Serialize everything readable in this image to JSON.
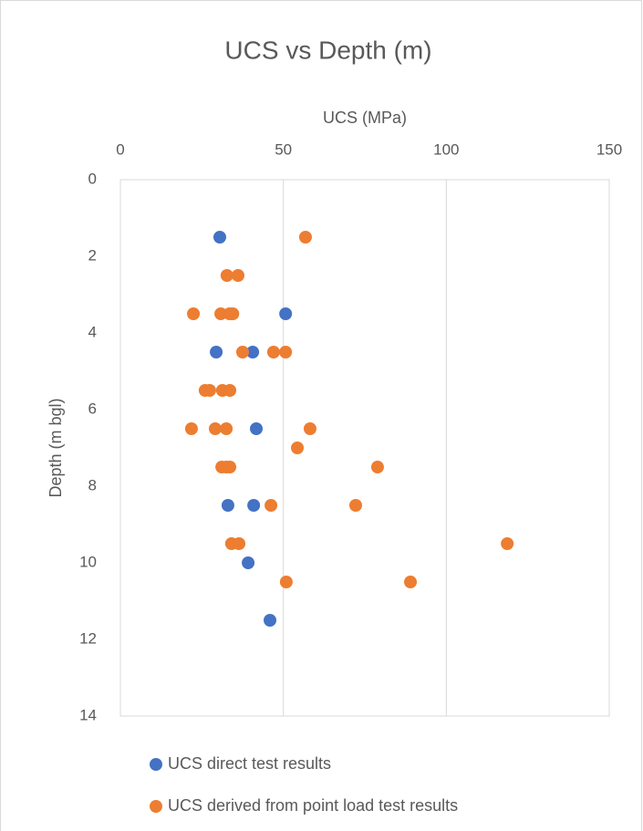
{
  "chart_data": {
    "type": "scatter",
    "title": "UCS vs Depth (m)",
    "x_label": "UCS (MPa)",
    "y_label": "Depth (m bgl)",
    "xlim": [
      0,
      150
    ],
    "xticks": [
      0,
      50,
      100,
      150
    ],
    "ylim": [
      0,
      14
    ],
    "yticks": [
      0,
      2,
      4,
      6,
      8,
      10,
      12,
      14
    ],
    "y_inverted": true,
    "x_axis_position": "top",
    "grid": "x",
    "legend": "bottom",
    "series": [
      {
        "name": "UCS direct test results",
        "color": "#4472c4",
        "x": [
          30.5,
          50.7,
          29.4,
          40.6,
          41.7,
          33.0,
          40.9,
          39.2,
          45.9
        ],
        "values": [
          1.5,
          3.5,
          4.5,
          4.5,
          6.5,
          8.5,
          8.5,
          10.0,
          11.5
        ]
      },
      {
        "name": "UCS derived from point load test results",
        "color": "#ed7d31",
        "x": [
          56.8,
          32.7,
          36.1,
          22.4,
          30.8,
          33.5,
          34.5,
          37.5,
          47.0,
          50.7,
          26.0,
          27.4,
          31.3,
          33.6,
          21.8,
          29.1,
          32.5,
          58.2,
          54.3,
          31.1,
          32.5,
          33.6,
          78.9,
          46.2,
          72.2,
          34.1,
          36.4,
          118.7,
          50.9,
          89.0
        ],
        "values": [
          1.5,
          2.5,
          2.5,
          3.5,
          3.5,
          3.5,
          3.5,
          4.5,
          4.5,
          4.5,
          5.5,
          5.5,
          5.5,
          5.5,
          6.5,
          6.5,
          6.5,
          6.5,
          7.0,
          7.5,
          7.5,
          7.5,
          7.5,
          8.5,
          8.5,
          9.5,
          9.5,
          9.5,
          10.5,
          10.5
        ]
      }
    ]
  }
}
